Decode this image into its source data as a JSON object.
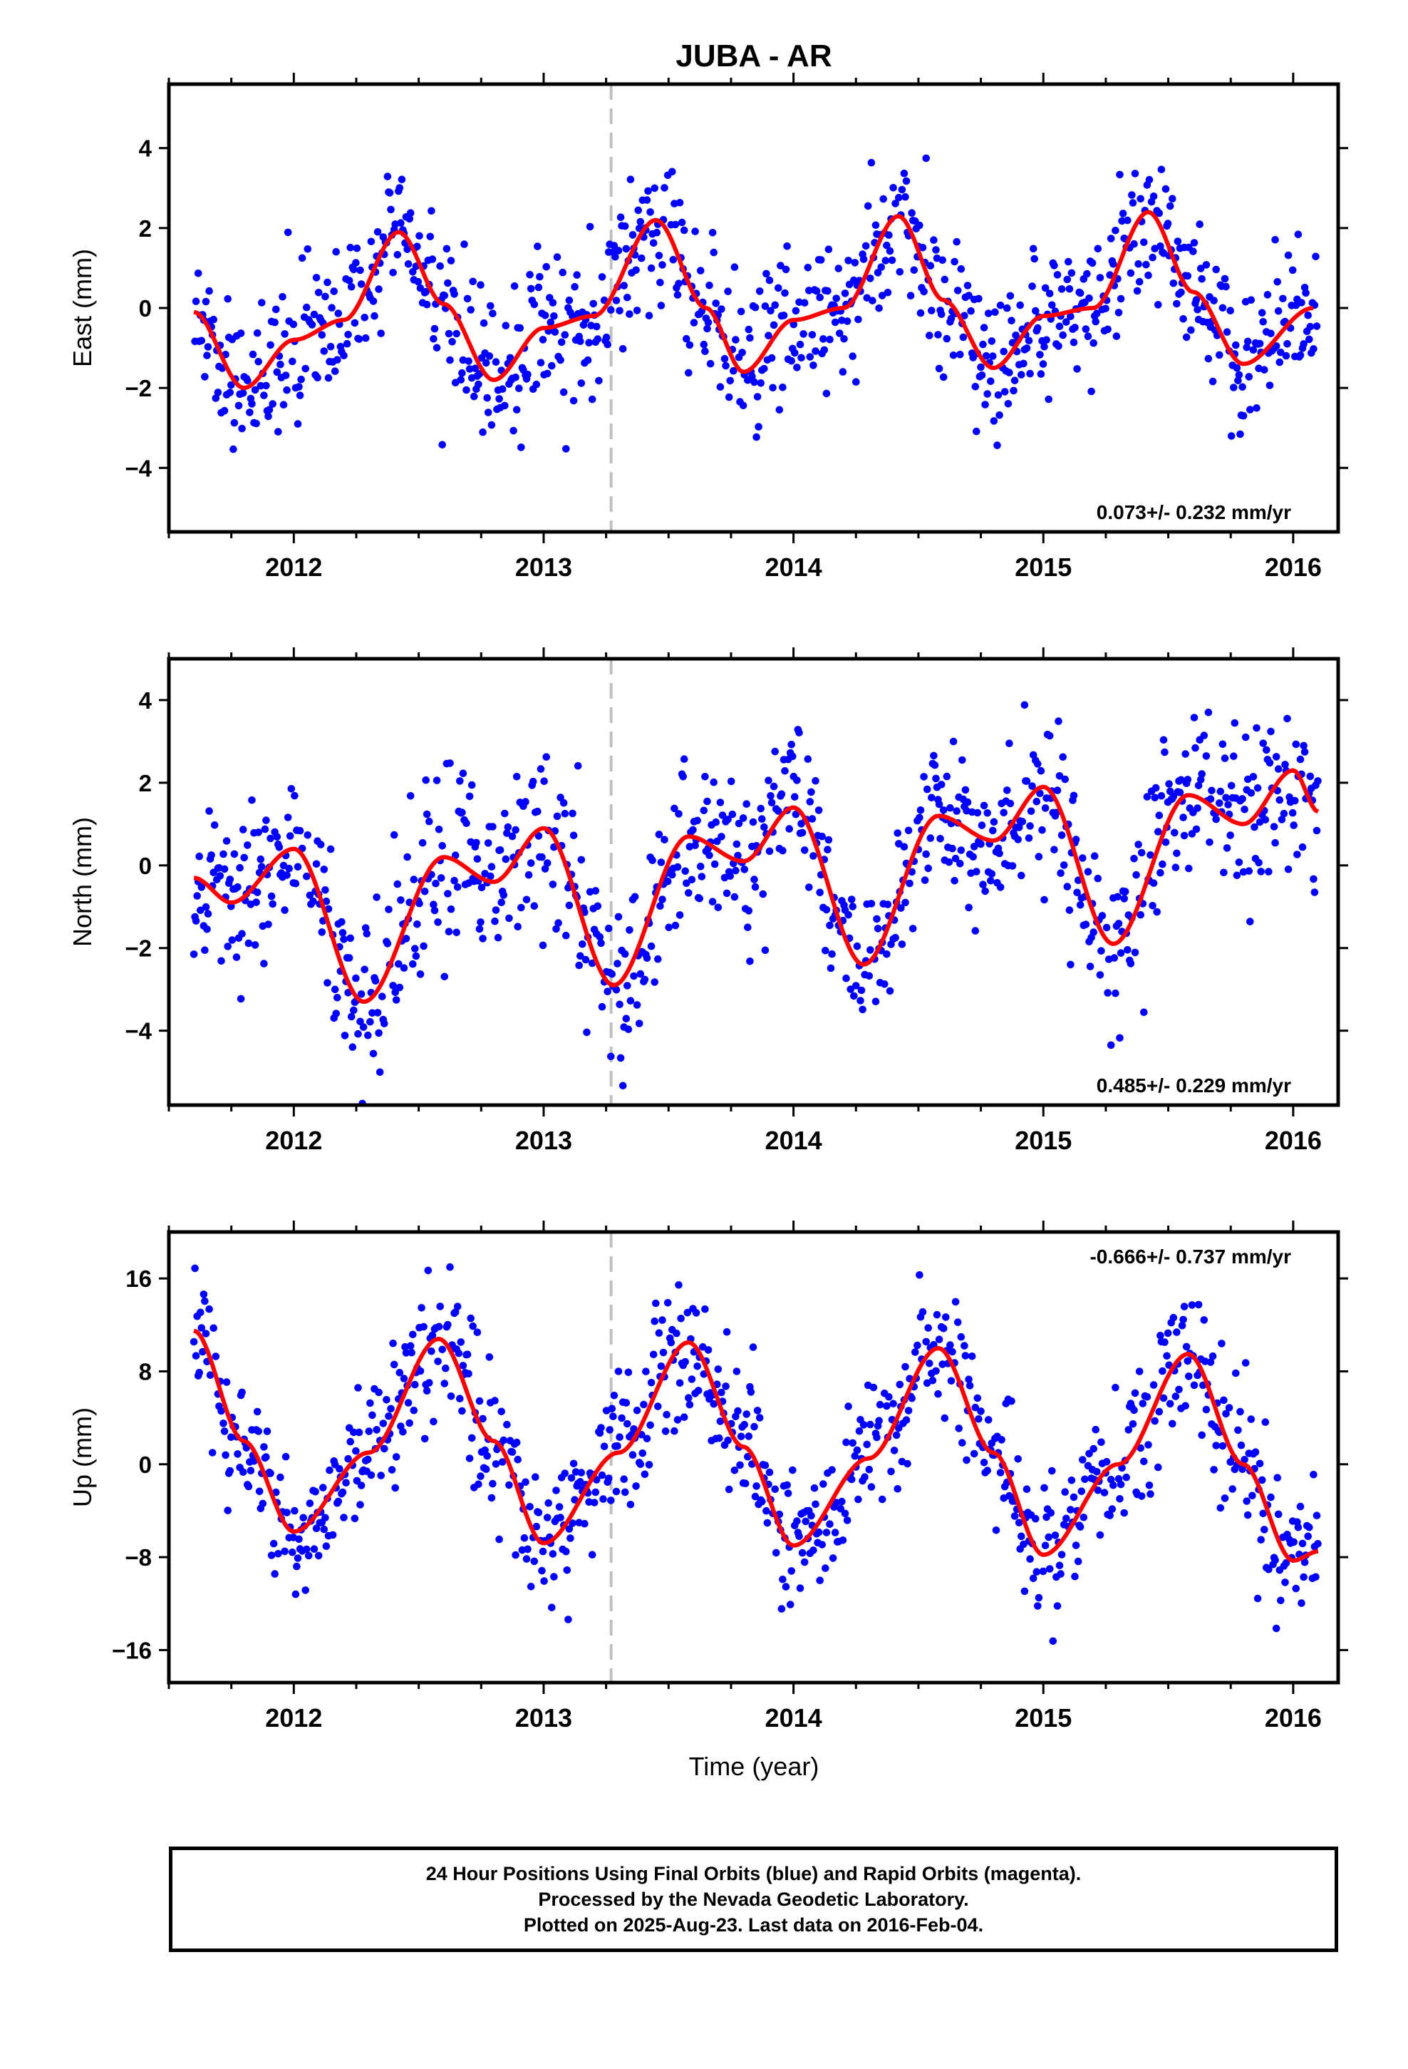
{
  "title": "JUBA - AR",
  "colors": {
    "points": "#0000ff",
    "fit": "#ff0000",
    "marker_line": "#c0c0c0",
    "frame": "#000000"
  },
  "x_axis": {
    "label": "Time (year)",
    "range": [
      2011.5,
      2016.18
    ],
    "ticks": [
      2012,
      2013,
      2014,
      2015,
      2016
    ],
    "tick_labels": [
      "2012",
      "2013",
      "2014",
      "2015",
      "2016"
    ],
    "equipment_change_marker": 2013.27
  },
  "chart_data": [
    {
      "type": "scatter",
      "name": "east",
      "ylabel": "East (mm)",
      "ylim": [
        -5.6,
        5.6
      ],
      "yticks": [
        -4,
        -2,
        0,
        2,
        4
      ],
      "velocity_label": "0.073+/- 0.232 mm/yr",
      "velocity_position": "bottom-right",
      "data_range": [
        2011.6,
        2016.1
      ],
      "model": {
        "trend_per_year": 0.073,
        "offset": 0.0,
        "annual_sin": 1.45,
        "annual_cos": -0.7,
        "semiannual_sin": -0.3,
        "semiannual_cos": 0.4
      },
      "scatter_sigma": 0.9,
      "fit_curve": {
        "x": [
          2011.6,
          2011.8,
          2012.0,
          2012.2,
          2012.42,
          2012.6,
          2012.8,
          2013.0,
          2013.2,
          2013.45,
          2013.65,
          2013.8,
          2014.0,
          2014.2,
          2014.42,
          2014.6,
          2014.8,
          2015.0,
          2015.2,
          2015.42,
          2015.6,
          2015.8,
          2016.08
        ],
        "y": [
          -0.1,
          -2.0,
          -0.8,
          -0.3,
          1.9,
          0.1,
          -1.8,
          -0.5,
          -0.2,
          2.2,
          0.0,
          -1.6,
          -0.3,
          0.0,
          2.3,
          0.2,
          -1.5,
          -0.2,
          0.0,
          2.4,
          0.4,
          -1.4,
          0.0
        ]
      }
    },
    {
      "type": "scatter",
      "name": "north",
      "ylabel": "North (mm)",
      "ylim": [
        -5.8,
        5.0
      ],
      "yticks": [
        -4,
        -2,
        0,
        2,
        4
      ],
      "velocity_label": "0.485+/- 0.229 mm/yr",
      "velocity_position": "bottom-right",
      "data_range": [
        2011.6,
        2016.1
      ],
      "model": {
        "trend_per_year": 0.485,
        "offset": -1.0,
        "annual_sin": -1.2,
        "annual_cos": 1.4,
        "semiannual_sin": 0.6,
        "semiannual_cos": -0.8
      },
      "scatter_sigma": 1.0,
      "fit_curve": {
        "x": [
          2011.6,
          2011.75,
          2012.0,
          2012.28,
          2012.6,
          2012.8,
          2013.0,
          2013.28,
          2013.58,
          2013.8,
          2014.0,
          2014.28,
          2014.58,
          2014.8,
          2015.0,
          2015.28,
          2015.58,
          2015.8,
          2016.0,
          2016.1
        ],
        "y": [
          -0.3,
          -0.9,
          0.4,
          -3.3,
          0.2,
          -0.4,
          0.9,
          -2.9,
          0.7,
          0.1,
          1.4,
          -2.4,
          1.2,
          0.6,
          1.9,
          -1.9,
          1.7,
          1.0,
          2.3,
          1.3
        ]
      }
    },
    {
      "type": "scatter",
      "name": "up",
      "ylabel": "Up (mm)",
      "ylim": [
        -18.8,
        20.0
      ],
      "yticks": [
        -16,
        -8,
        0,
        8,
        16
      ],
      "velocity_label": "-0.666+/- 0.737 mm/yr",
      "velocity_position": "top-right",
      "data_range": [
        2011.6,
        2016.1
      ],
      "model": {
        "trend_per_year": -0.666,
        "offset": 2.0,
        "annual_sin": 8.5,
        "annual_cos": -1.0,
        "semiannual_sin": 0.3,
        "semiannual_cos": 0.2
      },
      "scatter_sigma": 3.0,
      "fit_curve": {
        "x": [
          2011.6,
          2011.8,
          2012.0,
          2012.3,
          2012.58,
          2012.8,
          2013.0,
          2013.3,
          2013.58,
          2013.8,
          2014.0,
          2014.3,
          2014.58,
          2014.8,
          2015.0,
          2015.3,
          2015.58,
          2015.8,
          2016.0,
          2016.1
        ],
        "y": [
          11.5,
          2.0,
          -5.8,
          1.0,
          10.8,
          2.0,
          -6.8,
          1.0,
          10.5,
          1.5,
          -7.0,
          0.5,
          10.0,
          1.0,
          -7.8,
          0.0,
          9.5,
          0.0,
          -8.3,
          -7.5
        ]
      }
    }
  ],
  "footer": {
    "line1": "24 Hour Positions Using Final Orbits (blue) and Rapid Orbits (magenta).",
    "line2": "Processed by the Nevada Geodetic Laboratory.",
    "line3": "Plotted on 2025-Aug-23. Last data on 2016-Feb-04."
  }
}
